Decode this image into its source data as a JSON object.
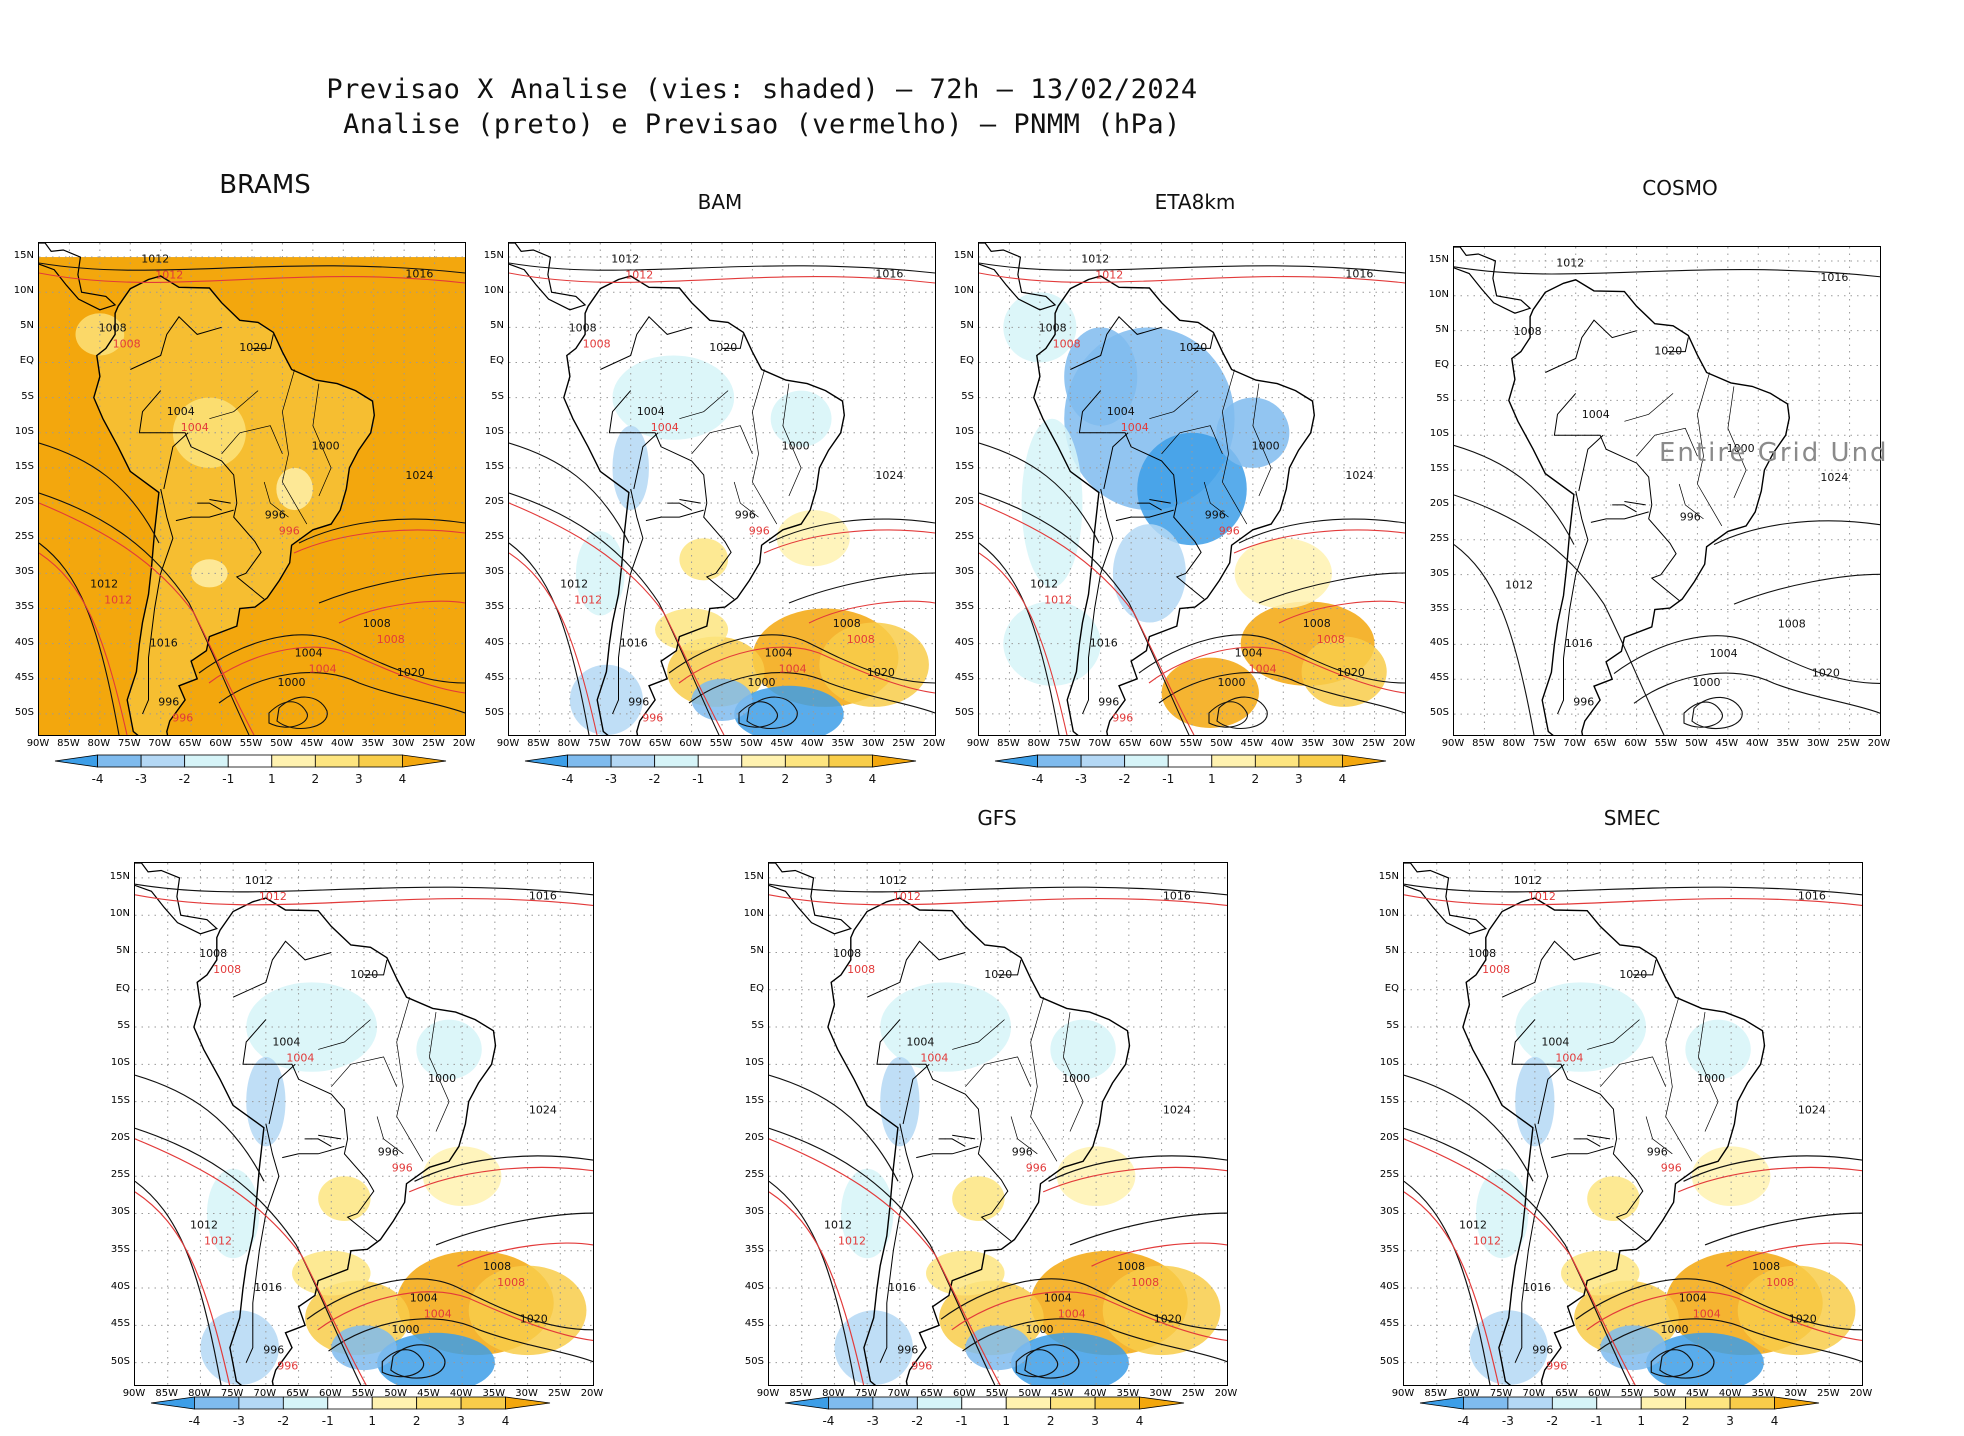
{
  "header": {
    "line1": "Previsao X Analise (vies: shaded) – 72h – 13/02/2024",
    "line2": "Analise (preto) e Previsao (vermelho) – PNMM (hPa)"
  },
  "lat_labels": [
    "15N",
    "10N",
    "5N",
    "EQ",
    "5S",
    "10S",
    "15S",
    "20S",
    "25S",
    "30S",
    "35S",
    "40S",
    "45S",
    "50S"
  ],
  "lon_labels": [
    "90W",
    "85W",
    "80W",
    "75W",
    "70W",
    "65W",
    "60W",
    "55W",
    "50W",
    "45W",
    "40W",
    "35W",
    "30W",
    "25W",
    "20W"
  ],
  "colorbar": {
    "ticks": [
      "-4",
      "-3",
      "-2",
      "-1",
      "1",
      "2",
      "3",
      "4"
    ],
    "colors": [
      "#3c9ee8",
      "#7fbbee",
      "#b4d8f5",
      "#d6f4f8",
      "#ffffff",
      "#fff2b0",
      "#fde580",
      "#f8cd4a",
      "#f3a70d"
    ]
  },
  "panels": [
    {
      "id": "brams",
      "title": "BRAMS",
      "bias": "warm"
    },
    {
      "id": "bam",
      "title": "BAM",
      "bias": "mixed"
    },
    {
      "id": "eta8km",
      "title": "ETA8km",
      "bias": "cool"
    },
    {
      "id": "cosmo",
      "title": "COSMO",
      "bias": "none",
      "undef_text": "Entire Grid Und"
    },
    {
      "id": "unnamed",
      "title": "",
      "bias": "mixed"
    },
    {
      "id": "gfs",
      "title": "GFS",
      "bias": "mixed"
    },
    {
      "id": "smec",
      "title": "SMEC",
      "bias": "mixed"
    }
  ],
  "contour_labels": [
    "1012",
    "1016",
    "1008",
    "1020",
    "1004",
    "1000",
    "996",
    "1024"
  ]
}
